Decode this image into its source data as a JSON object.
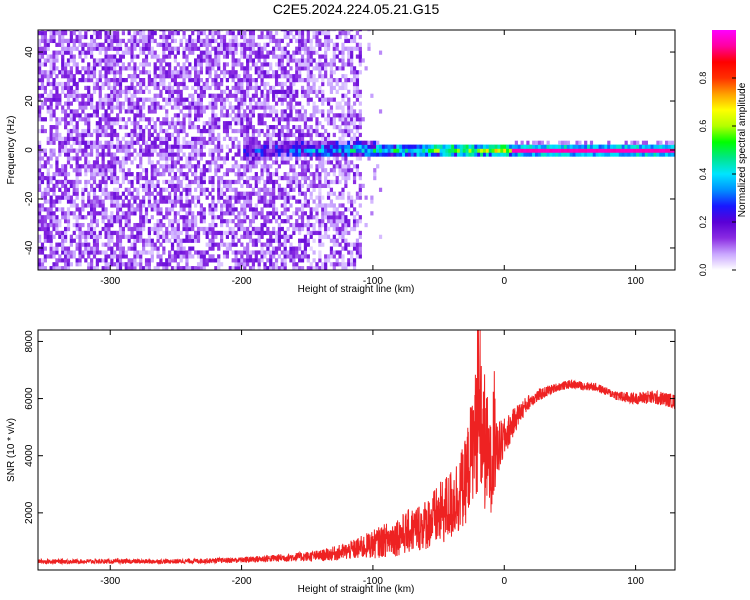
{
  "title": "C2E5.2024.224.05.21.G15",
  "chart_data": [
    {
      "type": "heatmap",
      "title": "C2E5.2024.224.05.21.G15",
      "xlabel": "Height of straight line (km)",
      "ylabel": "Frequency (Hz)",
      "xlim": [
        -355,
        130
      ],
      "ylim": [
        -49,
        49
      ],
      "x_ticks": [
        -300,
        -200,
        -100,
        0,
        100
      ],
      "y_ticks": [
        -40,
        -20,
        0,
        20,
        40
      ],
      "colorbar": {
        "label": "Normalized spectral amplitude",
        "range": [
          0,
          1
        ],
        "ticks": [
          0.0,
          0.2,
          0.4,
          0.6,
          0.8
        ],
        "colormap": [
          "#ffffff",
          "#c9a6ff",
          "#8a2be2",
          "#5a00d6",
          "#1818ff",
          "#0090ff",
          "#00e5ff",
          "#00e68a",
          "#00ff00",
          "#b4ff00",
          "#ffff00",
          "#ffa000",
          "#ff3000",
          "#ff0000",
          "#ff00a0",
          "#ff00ff"
        ]
      },
      "description": [
        {
          "x_range": [
            -355,
            -110
          ],
          "note": "broadband noise across all frequencies, amplitude ~0.05-0.2"
        },
        {
          "x_range": [
            -200,
            5
          ],
          "y_center": 0,
          "y_halfwidth": [
            3,
            2
          ],
          "note": "signal concentrated near 0 Hz, amplitude rising ~0.25-0.75"
        },
        {
          "x_range": [
            5,
            130
          ],
          "y_center": 0,
          "y_halfwidth": 1,
          "note": "narrow steady line at 0 Hz, peak amplitude ~0.95"
        }
      ],
      "grid": false
    },
    {
      "type": "line",
      "xlabel": "Height of straight line (km)",
      "ylabel": "SNR (10 * v/v)",
      "xlim": [
        -355,
        130
      ],
      "ylim": [
        0,
        8400
      ],
      "x_ticks": [
        -300,
        -200,
        -100,
        0,
        100
      ],
      "y_ticks": [
        2000,
        4000,
        6000,
        8000
      ],
      "grid": false,
      "series": [
        {
          "color": "#ee2222",
          "x": [
            -355,
            -300,
            -250,
            -200,
            -160,
            -140,
            -120,
            -100,
            -80,
            -60,
            -50,
            -40,
            -30,
            -25,
            -20,
            -15,
            -10,
            -5,
            0,
            10,
            20,
            30,
            40,
            50,
            60,
            70,
            80,
            90,
            100,
            110,
            120,
            130
          ],
          "y": [
            300,
            300,
            300,
            350,
            450,
            500,
            650,
            900,
            1200,
            1600,
            1900,
            2300,
            3000,
            4200,
            5200,
            4500,
            3500,
            4200,
            4600,
            5400,
            5950,
            6200,
            6400,
            6500,
            6450,
            6400,
            6200,
            6050,
            6000,
            6050,
            6000,
            5900
          ],
          "noise_amplitude": [
            80,
            80,
            80,
            100,
            150,
            200,
            300,
            500,
            700,
            900,
            1100,
            1300,
            1500,
            1800,
            2500,
            2500,
            1500,
            1000,
            700,
            400,
            250,
            200,
            150,
            150,
            150,
            150,
            150,
            200,
            200,
            250,
            250,
            250
          ]
        }
      ]
    }
  ]
}
